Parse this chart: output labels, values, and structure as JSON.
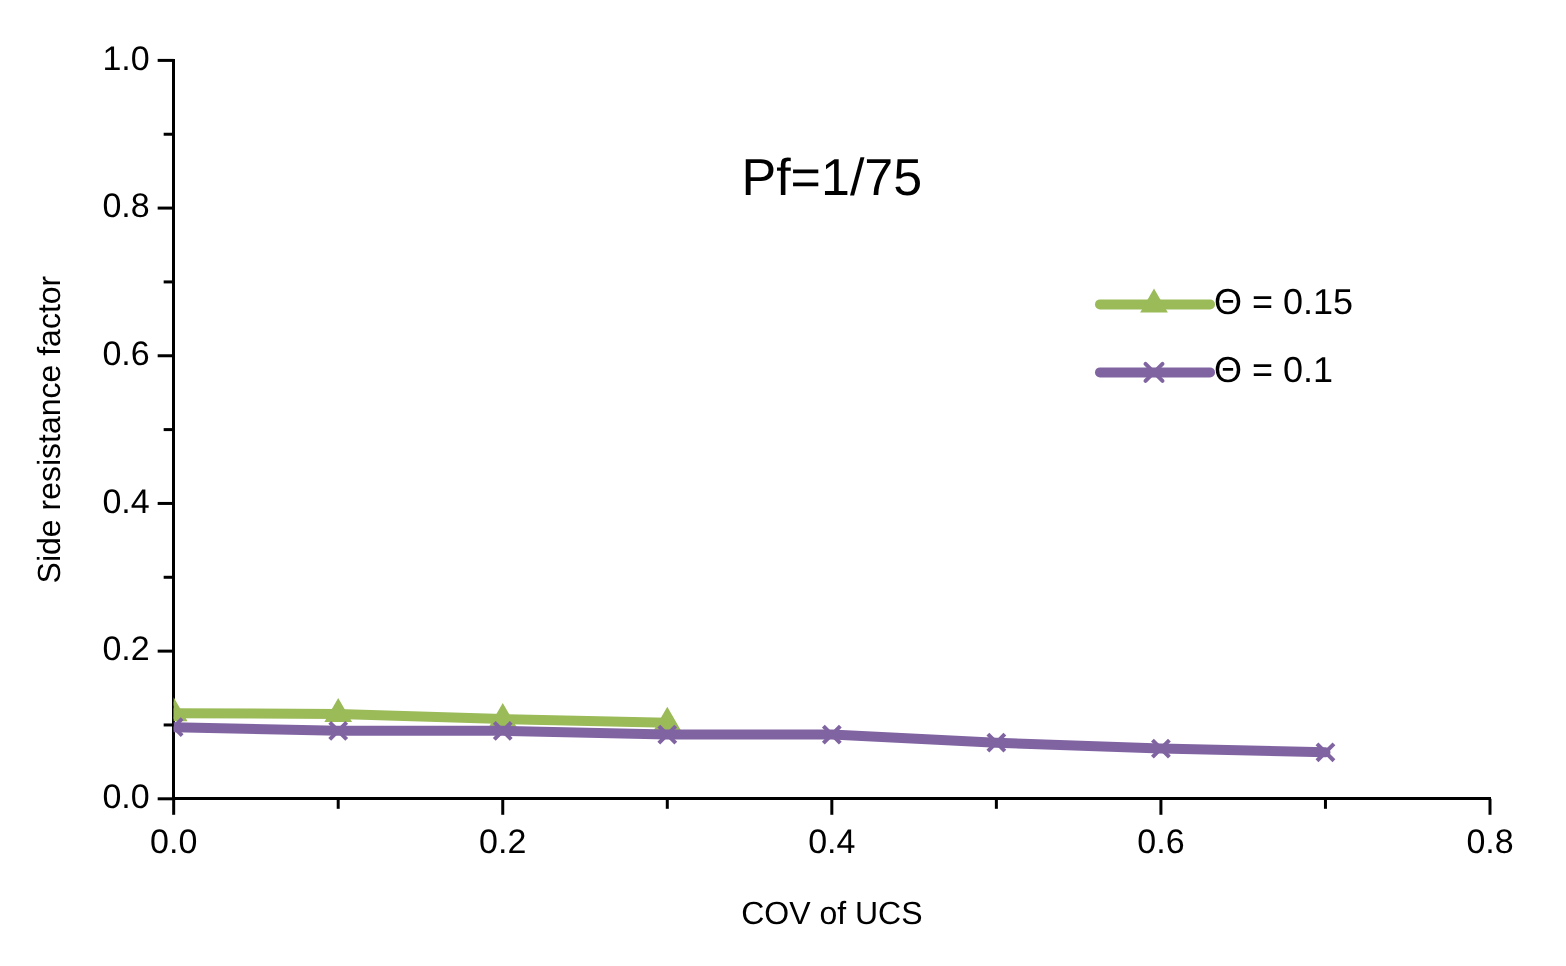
{
  "chart_data": {
    "type": "line",
    "xlabel": "COV of UCS",
    "ylabel": "Side resistance factor",
    "annotations": [
      "Pf=1/75"
    ],
    "xlim": [
      0,
      0.8
    ],
    "xticks": [
      {
        "value": 0,
        "label": "0.0"
      },
      0.2,
      0.4,
      0.6,
      0.8
    ],
    "ylim": [
      0,
      1
    ],
    "yticks": [
      {
        "value": 0,
        "label": "0.0"
      },
      0.2,
      0.4,
      0.6,
      0.8,
      {
        "value": 1,
        "label": "1.0"
      }
    ],
    "grid": false,
    "legend": "right",
    "series": [
      {
        "name": "Θ = 0.15",
        "color": "#9bbb59",
        "marker": "triangle",
        "x": [
          0,
          0.1,
          0.2,
          0.3
        ],
        "values": [
          0.116,
          0.115,
          0.108,
          0.103
        ]
      },
      {
        "name": "Θ = 0.1",
        "color": "#8064a2",
        "marker": "cross",
        "x": [
          0,
          0.1,
          0.2,
          0.3,
          0.4,
          0.5,
          0.6,
          0.7
        ],
        "values": [
          0.097,
          0.092,
          0.092,
          0.087,
          0.087,
          0.076,
          0.068,
          0.063
        ]
      }
    ]
  }
}
